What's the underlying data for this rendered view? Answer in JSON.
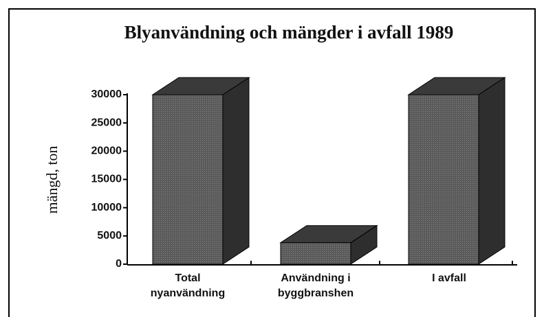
{
  "chart_data": {
    "type": "bar3d",
    "title": "Blyanvändning och mängder i avfall 1989",
    "y_label": "mängd, ton",
    "categories": [
      [
        "Total",
        "nyanvändning"
      ],
      [
        "Användning i",
        "byggbranshen"
      ],
      [
        "I avfall"
      ]
    ],
    "values": [
      30000,
      3800,
      30000
    ],
    "color": "#555555",
    "ylim": [
      0,
      30000
    ],
    "yticks": [
      0,
      5000,
      10000,
      15000,
      20000,
      25000,
      30000
    ]
  }
}
